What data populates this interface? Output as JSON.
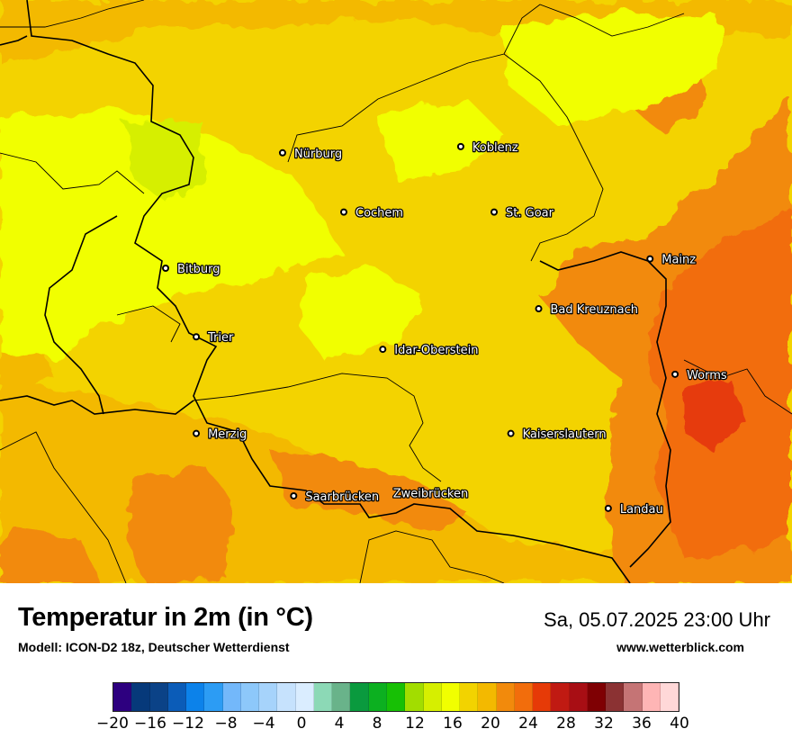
{
  "map": {
    "background_color": "#f2d000",
    "cities": [
      {
        "name": "Nürburg",
        "lat": 50.34,
        "lon": 6.95
      },
      {
        "name": "Koblenz",
        "lat": 50.36,
        "lon": 7.59
      },
      {
        "name": "Cochem",
        "lat": 50.15,
        "lon": 7.17
      },
      {
        "name": "St. Goar",
        "lat": 50.15,
        "lon": 7.71
      },
      {
        "name": "Bitburg",
        "lat": 49.97,
        "lon": 6.53
      },
      {
        "name": "Mainz",
        "lat": 50.0,
        "lon": 8.27
      },
      {
        "name": "Bad Kreuznach",
        "lat": 49.84,
        "lon": 7.87
      },
      {
        "name": "Trier",
        "lat": 49.75,
        "lon": 6.64
      },
      {
        "name": "Idar-Oberstein",
        "lat": 49.71,
        "lon": 7.31
      },
      {
        "name": "Worms",
        "lat": 49.63,
        "lon": 8.36
      },
      {
        "name": "Merzig",
        "lat": 49.44,
        "lon": 6.64
      },
      {
        "name": "Kaiserslautern",
        "lat": 49.44,
        "lon": 7.77
      },
      {
        "name": "Saarbrücken",
        "lat": 49.24,
        "lon": 6.99
      },
      {
        "name": "Zweibrücken",
        "lat": 49.25,
        "lon": 7.36,
        "no_marker": true
      },
      {
        "name": "Landau",
        "lat": 49.2,
        "lon": 8.12
      }
    ]
  },
  "footer": {
    "title": "Temperatur in 2m (in °C)",
    "subtitle": "Modell: ICON-D2 18z, Deutscher Wetterdienst",
    "datetime": "Sa, 05.07.2025 23:00 Uhr",
    "website": "www.wetterblick.com"
  },
  "colorbar": {
    "colors": [
      "#2d007f",
      "#06397a",
      "#0b4287",
      "#0b5cb8",
      "#0c82ea",
      "#2c9cf4",
      "#73b8fa",
      "#8dc8fa",
      "#a6d3fb",
      "#c6e2fd",
      "#daedff",
      "#8cd9b6",
      "#69b38a",
      "#0a9a3e",
      "#0cb020",
      "#17c005",
      "#a2dd00",
      "#d6ef00",
      "#f1ff00",
      "#f2d300",
      "#f3b900",
      "#f28a0c",
      "#f26d0c",
      "#e63a07",
      "#c01a12",
      "#a80e14",
      "#7f0003",
      "#8b3233",
      "#c57475",
      "#feb5b5",
      "#ffd8d8"
    ],
    "tick_labels": [
      "−20",
      "−16",
      "−12",
      "−8",
      "−4",
      "0",
      "4",
      "8",
      "12",
      "16",
      "20",
      "24",
      "28",
      "32",
      "36",
      "40"
    ]
  }
}
